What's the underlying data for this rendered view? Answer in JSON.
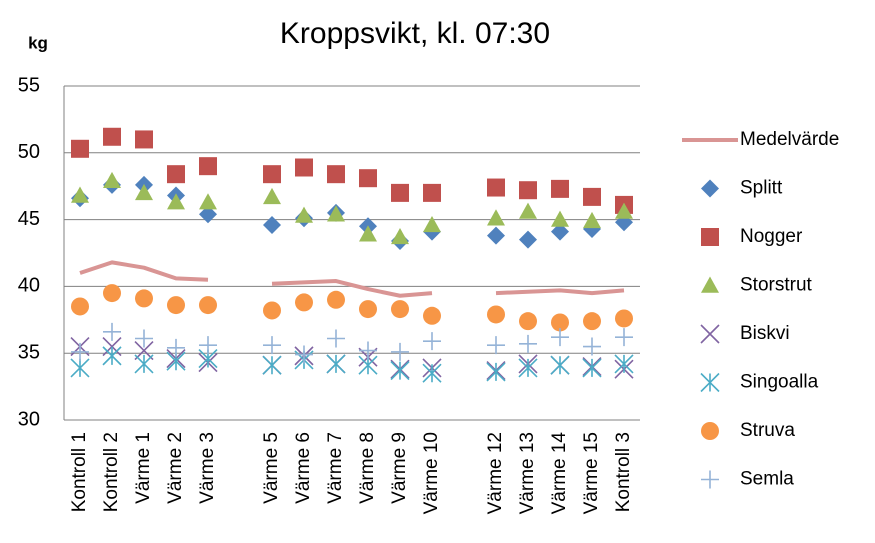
{
  "chart_data": {
    "type": "line-scatter",
    "title": "Kroppsvikt, kl. 07:30",
    "y_label": "kg",
    "categories": [
      "Kontroll 1",
      "Kontroll 2",
      "Värme 1",
      "Värme 2",
      "Värme 3",
      null,
      "Värme 5",
      "Värme 6",
      "Värme 7",
      "Värme 8",
      "Värme 9",
      "Värme 10",
      null,
      "Värme 12",
      "Värme 13",
      "Värme 14",
      "Värme 15",
      "Kontroll 3"
    ],
    "ylim": [
      30,
      55
    ],
    "yticks": [
      30,
      35,
      40,
      45,
      50,
      55
    ],
    "grid": true,
    "legend": "right",
    "series": [
      {
        "name": "Medelvärde",
        "color": "#d99594",
        "marker": "line",
        "values": [
          41.0,
          41.8,
          41.4,
          40.6,
          40.5,
          null,
          40.2,
          40.3,
          40.4,
          39.8,
          39.3,
          39.5,
          null,
          39.5,
          39.6,
          39.7,
          39.5,
          39.7
        ]
      },
      {
        "name": "Splitt",
        "color": "#4f81bd",
        "marker": "diamond",
        "values": [
          46.6,
          47.6,
          47.6,
          46.8,
          45.4,
          null,
          44.6,
          45.1,
          45.5,
          44.5,
          43.4,
          44.1,
          null,
          43.8,
          43.5,
          44.1,
          44.3,
          44.8
        ]
      },
      {
        "name": "Nogger",
        "color": "#c0504d",
        "marker": "square",
        "values": [
          50.3,
          51.2,
          51.0,
          48.4,
          49.0,
          null,
          48.4,
          48.9,
          48.4,
          48.1,
          47.0,
          47.0,
          null,
          47.4,
          47.2,
          47.3,
          46.7,
          46.1
        ]
      },
      {
        "name": "Storstrut",
        "color": "#9bbb59",
        "marker": "triangle",
        "values": [
          46.8,
          47.9,
          47.0,
          46.3,
          46.3,
          null,
          46.7,
          45.3,
          45.4,
          43.9,
          43.7,
          44.6,
          null,
          45.1,
          45.6,
          45.0,
          44.9,
          45.6
        ]
      },
      {
        "name": "Biskvi",
        "color": "#8064a2",
        "marker": "x",
        "values": [
          35.5,
          35.5,
          35.2,
          34.6,
          34.3,
          null,
          34.1,
          34.8,
          34.2,
          34.7,
          33.8,
          33.9,
          null,
          33.7,
          34.2,
          34.1,
          34.0,
          33.8
        ]
      },
      {
        "name": "Singoalla",
        "color": "#4bacc6",
        "marker": "star",
        "values": [
          33.9,
          34.8,
          34.2,
          34.4,
          34.6,
          null,
          34.1,
          34.5,
          34.2,
          34.1,
          33.7,
          33.5,
          null,
          33.6,
          33.9,
          34.1,
          33.9,
          34.2
        ]
      },
      {
        "name": "Struva",
        "color": "#f79646",
        "marker": "circle",
        "values": [
          38.5,
          39.5,
          39.1,
          38.6,
          38.6,
          null,
          38.2,
          38.8,
          39.0,
          38.3,
          38.3,
          37.8,
          null,
          37.9,
          37.4,
          37.3,
          37.4,
          37.6
        ]
      },
      {
        "name": "Semla",
        "color": "#95b3d7",
        "marker": "plus",
        "values": [
          35.1,
          36.6,
          36.1,
          35.4,
          35.6,
          null,
          35.6,
          34.9,
          36.1,
          35.2,
          35.1,
          35.9,
          null,
          35.6,
          35.7,
          36.2,
          35.5,
          36.2
        ]
      }
    ]
  }
}
